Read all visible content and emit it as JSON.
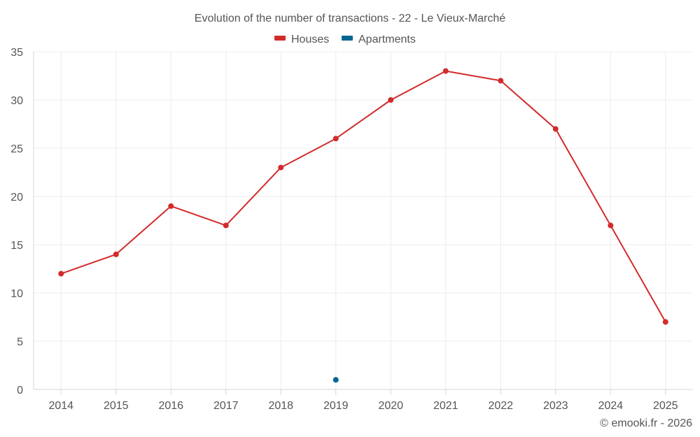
{
  "chart_data": {
    "type": "line",
    "title": "Evolution of the number of transactions - 22 - Le Vieux-Marché",
    "credit": "© emooki.fr - 2026",
    "categories": [
      "2014",
      "2015",
      "2016",
      "2017",
      "2018",
      "2019",
      "2020",
      "2021",
      "2022",
      "2023",
      "2024",
      "2025"
    ],
    "ylim": [
      0,
      35
    ],
    "yticks": [
      0,
      5,
      10,
      15,
      20,
      25,
      30,
      35
    ],
    "grid": true,
    "legend_position": "top-center",
    "series": [
      {
        "name": "Houses",
        "color": "#d22b2b",
        "values": [
          12,
          14,
          19,
          17,
          23,
          26,
          30,
          33,
          32,
          27,
          17,
          7
        ]
      },
      {
        "name": "Apartments",
        "color": "#006693",
        "values": [
          null,
          null,
          null,
          null,
          null,
          1,
          null,
          null,
          null,
          null,
          null,
          null
        ]
      }
    ]
  }
}
